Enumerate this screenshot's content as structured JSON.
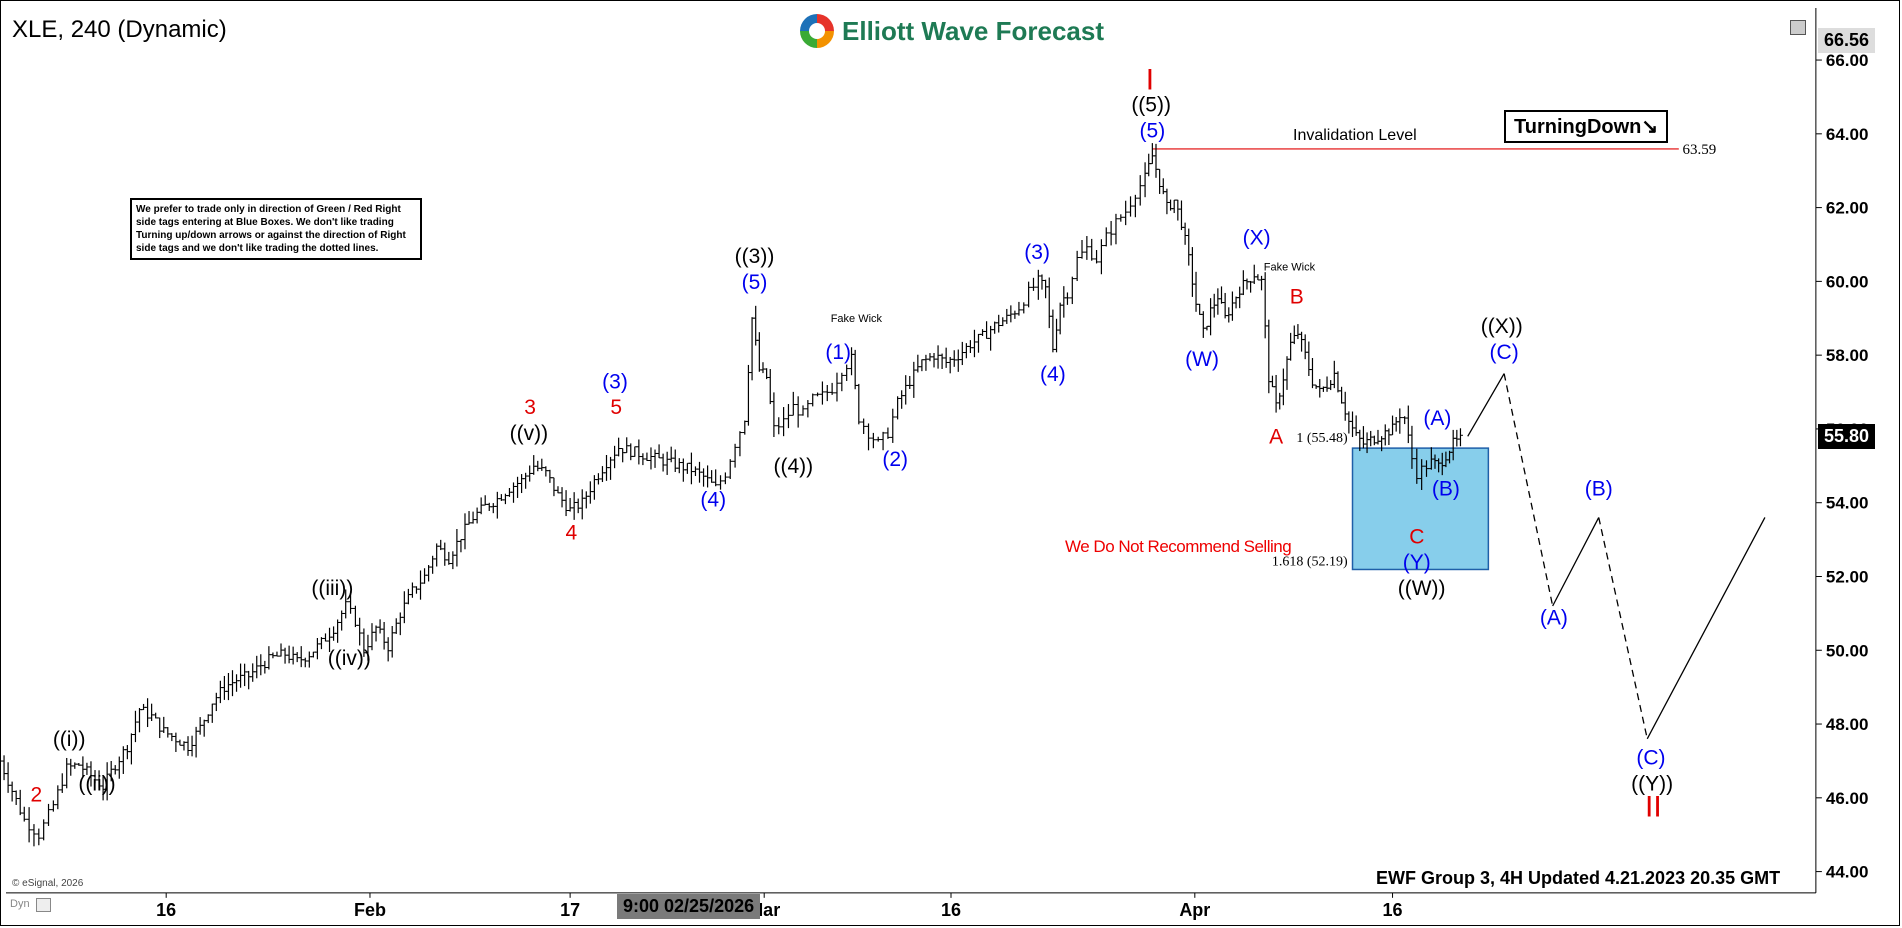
{
  "header": {
    "symbol_label": "XLE, 240 (Dynamic)",
    "brand": "Elliott Wave Forecast"
  },
  "disclaimer": "We prefer to trade only in direction of Green / Red Right side tags entering at Blue Boxes. We don't like trading Turning up/down arrows or against the direction of Right side tags and we don't like trading the dotted lines.",
  "turning_label": "TurningDown↘",
  "invalidation_label": "Invalidation Level",
  "no_sell_label": "We Do Not Recommend Selling",
  "footer_label": "EWF Group 3, 4H Updated 4.21.2023 20.35 GMT",
  "esignal_label": "© eSignal, 2026",
  "time_indicator": "9:00 02/25/2026",
  "dyn_label": "Dyn",
  "current_price_label": "55.80",
  "top_price_label": "66.56",
  "colors": {
    "blue": "#0000ee",
    "red": "#e00000",
    "black": "#000000",
    "box": "#87ceeb",
    "box_border": "#1f5fa8",
    "invalidation_line": "#e00000"
  },
  "chart_data": {
    "type": "candlestick",
    "title": "XLE, 240 (Dynamic)",
    "ylim": [
      43.5,
      66.8
    ],
    "y_ticks": [
      "66.00",
      "64.00",
      "62.00",
      "60.00",
      "58.00",
      "56.00",
      "54.00",
      "52.00",
      "50.00",
      "48.00",
      "46.00",
      "44.00"
    ],
    "x_ticks": [
      "16",
      "Feb",
      "17",
      "Mar",
      "16",
      "Apr",
      "16"
    ],
    "invalidation": {
      "value": 63.59,
      "label": "63.59"
    },
    "blue_box": {
      "top": 55.48,
      "bottom": 52.19,
      "top_label": "1 (55.48)",
      "bottom_label": "1.618 (52.19)"
    },
    "price_path": [
      [
        0,
        47.0
      ],
      [
        10,
        46.2
      ],
      [
        20,
        45.4
      ],
      [
        32,
        45.0
      ],
      [
        44,
        45.8
      ],
      [
        55,
        46.8
      ],
      [
        65,
        46.9
      ],
      [
        75,
        46.6
      ],
      [
        85,
        46.3
      ],
      [
        95,
        46.9
      ],
      [
        105,
        47.4
      ],
      [
        115,
        48.4
      ],
      [
        125,
        48.2
      ],
      [
        135,
        47.8
      ],
      [
        145,
        47.6
      ],
      [
        155,
        47.4
      ],
      [
        165,
        47.9
      ],
      [
        175,
        48.6
      ],
      [
        185,
        49.0
      ],
      [
        195,
        49.2
      ],
      [
        205,
        49.3
      ],
      [
        215,
        49.6
      ],
      [
        225,
        49.8
      ],
      [
        235,
        49.9
      ],
      [
        245,
        49.7
      ],
      [
        255,
        49.9
      ],
      [
        265,
        50.2
      ],
      [
        275,
        50.6
      ],
      [
        285,
        51.2
      ],
      [
        293,
        50.8
      ],
      [
        300,
        50.0
      ],
      [
        310,
        50.6
      ],
      [
        320,
        50.1
      ],
      [
        330,
        51.0
      ],
      [
        340,
        51.6
      ],
      [
        350,
        52.0
      ],
      [
        360,
        52.8
      ],
      [
        370,
        52.5
      ],
      [
        380,
        53.1
      ],
      [
        390,
        53.6
      ],
      [
        400,
        53.9
      ],
      [
        410,
        54.1
      ],
      [
        420,
        54.4
      ],
      [
        430,
        54.6
      ],
      [
        440,
        55.0
      ],
      [
        450,
        54.8
      ],
      [
        460,
        54.2
      ],
      [
        470,
        53.8
      ],
      [
        480,
        54.0
      ],
      [
        490,
        54.6
      ],
      [
        500,
        55.1
      ],
      [
        510,
        55.5
      ],
      [
        520,
        55.4
      ],
      [
        530,
        55.3
      ],
      [
        540,
        55.2
      ],
      [
        550,
        55.1
      ],
      [
        560,
        55.0
      ],
      [
        570,
        54.9
      ],
      [
        580,
        54.7
      ],
      [
        590,
        54.4
      ],
      [
        598,
        54.8
      ],
      [
        606,
        55.6
      ],
      [
        614,
        56.3
      ],
      [
        620,
        59.0
      ],
      [
        626,
        57.6
      ],
      [
        632,
        57.4
      ],
      [
        638,
        56.0
      ],
      [
        646,
        56.2
      ],
      [
        654,
        56.6
      ],
      [
        662,
        56.4
      ],
      [
        670,
        56.8
      ],
      [
        678,
        56.9
      ],
      [
        686,
        57.1
      ],
      [
        694,
        57.6
      ],
      [
        702,
        57.9
      ],
      [
        708,
        56.3
      ],
      [
        716,
        55.9
      ],
      [
        724,
        55.6
      ],
      [
        732,
        55.9
      ],
      [
        740,
        56.7
      ],
      [
        750,
        57.3
      ],
      [
        760,
        57.8
      ],
      [
        770,
        58.0
      ],
      [
        780,
        57.8
      ],
      [
        790,
        58.0
      ],
      [
        800,
        58.3
      ],
      [
        810,
        58.5
      ],
      [
        820,
        58.8
      ],
      [
        830,
        59.0
      ],
      [
        840,
        59.3
      ],
      [
        848,
        59.7
      ],
      [
        856,
        60.0
      ],
      [
        862,
        59.8
      ],
      [
        868,
        58.2
      ],
      [
        874,
        59.4
      ],
      [
        880,
        59.7
      ],
      [
        888,
        60.6
      ],
      [
        896,
        60.9
      ],
      [
        904,
        60.6
      ],
      [
        912,
        61.2
      ],
      [
        920,
        61.6
      ],
      [
        928,
        61.9
      ],
      [
        936,
        62.4
      ],
      [
        944,
        62.8
      ],
      [
        950,
        63.4
      ],
      [
        956,
        62.7
      ],
      [
        962,
        62.0
      ],
      [
        968,
        62.2
      ],
      [
        974,
        61.6
      ],
      [
        980,
        60.6
      ],
      [
        986,
        59.4
      ],
      [
        992,
        58.6
      ],
      [
        998,
        59.2
      ],
      [
        1004,
        59.6
      ],
      [
        1010,
        59.0
      ],
      [
        1016,
        59.4
      ],
      [
        1022,
        59.8
      ],
      [
        1028,
        60.0
      ],
      [
        1034,
        60.2
      ],
      [
        1040,
        60.0
      ],
      [
        1046,
        57.4
      ],
      [
        1052,
        56.6
      ],
      [
        1058,
        57.4
      ],
      [
        1064,
        58.3
      ],
      [
        1070,
        58.6
      ],
      [
        1076,
        58.0
      ],
      [
        1082,
        57.3
      ],
      [
        1088,
        57.0
      ],
      [
        1094,
        57.2
      ],
      [
        1100,
        57.5
      ],
      [
        1106,
        56.8
      ],
      [
        1112,
        56.2
      ],
      [
        1118,
        55.8
      ],
      [
        1124,
        55.6
      ],
      [
        1130,
        55.7
      ],
      [
        1136,
        55.8
      ],
      [
        1142,
        55.9
      ],
      [
        1148,
        56.0
      ],
      [
        1154,
        56.4
      ],
      [
        1158,
        56.3
      ],
      [
        1164,
        55.2
      ],
      [
        1168,
        54.8
      ],
      [
        1172,
        54.9
      ],
      [
        1176,
        55.0
      ],
      [
        1180,
        55.1
      ],
      [
        1186,
        55.0
      ],
      [
        1192,
        55.3
      ],
      [
        1198,
        55.6
      ],
      [
        1204,
        55.7
      ]
    ],
    "projection": {
      "solid_1": [
        [
          1210,
          55.8
        ],
        [
          1240,
          57.5
        ]
      ],
      "dashed_1": [
        [
          1240,
          57.5
        ],
        [
          1280,
          51.2
        ]
      ],
      "solid_2": [
        [
          1280,
          51.2
        ],
        [
          1318,
          53.6
        ]
      ],
      "dashed_2": [
        [
          1318,
          53.6
        ],
        [
          1358,
          47.6
        ]
      ],
      "solid_3": [
        [
          1358,
          47.6
        ],
        [
          1455,
          53.6
        ]
      ]
    },
    "wave_labels": [
      {
        "text": "2",
        "x": 30,
        "y": 45.9,
        "color": "red"
      },
      {
        "text": "((i))",
        "x": 57,
        "y": 47.4,
        "color": "black"
      },
      {
        "text": "((ii))",
        "x": 80,
        "y": 46.2,
        "color": "black"
      },
      {
        "text": "((iii))",
        "x": 274,
        "y": 51.5,
        "color": "black"
      },
      {
        "text": "((iv))",
        "x": 288,
        "y": 49.6,
        "color": "black"
      },
      {
        "text": "((v))",
        "x": 436,
        "y": 55.7,
        "color": "black"
      },
      {
        "text": "3",
        "x": 437,
        "y": 56.4,
        "color": "red"
      },
      {
        "text": "4",
        "x": 471,
        "y": 53.0,
        "color": "red"
      },
      {
        "text": "(3)",
        "x": 507,
        "y": 57.1,
        "color": "blue"
      },
      {
        "text": "5",
        "x": 508,
        "y": 56.4,
        "color": "red"
      },
      {
        "text": "(4)",
        "x": 588,
        "y": 53.9,
        "color": "blue"
      },
      {
        "text": "((3))",
        "x": 622,
        "y": 60.5,
        "color": "black"
      },
      {
        "text": "(5)",
        "x": 622,
        "y": 59.8,
        "color": "blue"
      },
      {
        "text": "((4))",
        "x": 654,
        "y": 54.8,
        "color": "black"
      },
      {
        "text": "(1)",
        "x": 691,
        "y": 57.9,
        "color": "blue"
      },
      {
        "text": "(2)",
        "x": 738,
        "y": 55.0,
        "color": "blue"
      },
      {
        "text": "(3)",
        "x": 855,
        "y": 60.6,
        "color": "blue"
      },
      {
        "text": "(4)",
        "x": 868,
        "y": 57.3,
        "color": "blue"
      },
      {
        "text": "I",
        "x": 948,
        "y": 65.2,
        "color": "red"
      },
      {
        "text": "((5))",
        "x": 949,
        "y": 64.6,
        "color": "black"
      },
      {
        "text": "(5)",
        "x": 950,
        "y": 63.9,
        "color": "blue"
      },
      {
        "text": "(X)",
        "x": 1036,
        "y": 61.0,
        "color": "blue"
      },
      {
        "text": "(W)",
        "x": 991,
        "y": 57.7,
        "color": "blue"
      },
      {
        "text": "B",
        "x": 1069,
        "y": 59.4,
        "color": "red"
      },
      {
        "text": "A",
        "x": 1052,
        "y": 55.6,
        "color": "red"
      },
      {
        "text": "((X))",
        "x": 1238,
        "y": 58.6,
        "color": "black"
      },
      {
        "text": "(C)",
        "x": 1240,
        "y": 57.9,
        "color": "blue"
      },
      {
        "text": "(A)",
        "x": 1185,
        "y": 56.1,
        "color": "blue"
      },
      {
        "text": "(B)",
        "x": 1192,
        "y": 54.2,
        "color": "blue"
      },
      {
        "text": "C",
        "x": 1168,
        "y": 52.9,
        "color": "red"
      },
      {
        "text": "(Y)",
        "x": 1168,
        "y": 52.2,
        "color": "blue"
      },
      {
        "text": "((W))",
        "x": 1172,
        "y": 51.5,
        "color": "black"
      },
      {
        "text": "(A)",
        "x": 1281,
        "y": 50.7,
        "color": "blue"
      },
      {
        "text": "(B)",
        "x": 1318,
        "y": 54.2,
        "color": "blue"
      },
      {
        "text": "(C)",
        "x": 1361,
        "y": 46.9,
        "color": "blue"
      },
      {
        "text": "((Y))",
        "x": 1362,
        "y": 46.2,
        "color": "black"
      },
      {
        "text": "II",
        "x": 1363,
        "y": 45.5,
        "color": "red"
      }
    ],
    "small_notes": [
      {
        "text": "Fake Wick",
        "x": 706,
        "y": 58.9
      },
      {
        "text": "Fake Wick",
        "x": 1063,
        "y": 60.3
      }
    ]
  }
}
